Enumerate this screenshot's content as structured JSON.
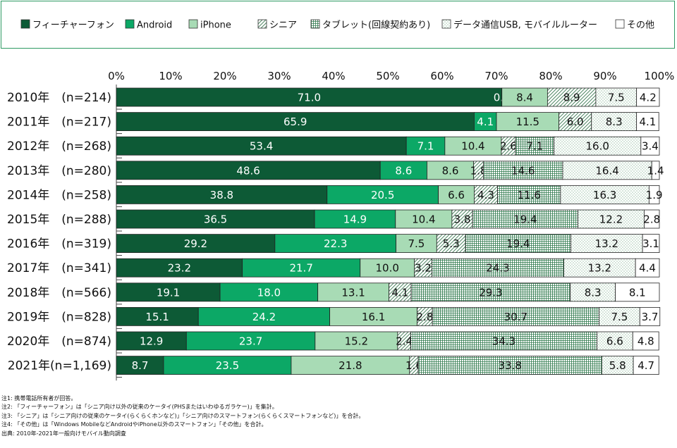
{
  "chart_data": {
    "type": "bar",
    "orientation": "horizontal",
    "stacked": true,
    "xlim": [
      0,
      100
    ],
    "x_ticks": [
      "0%",
      "10%",
      "20%",
      "30%",
      "40%",
      "50%",
      "60%",
      "70%",
      "80%",
      "90%",
      "100%"
    ],
    "legend_position": "top",
    "categories": [
      "2010年　(n=214)",
      "2011年　(n=217)",
      "2012年　(n=268)",
      "2013年　(n=280)",
      "2014年　(n=258)",
      "2015年　(n=288)",
      "2016年　(n=319)",
      "2017年　(n=341)",
      "2018年　(n=566)",
      "2019年　(n=828)",
      "2020年　(n=874)",
      "2021年(n=1,169)"
    ],
    "series": [
      {
        "name": "フィーチャーフォン",
        "fill": "#0d5a36",
        "pattern": "solid",
        "label_color": "#ffffff",
        "values": [
          71.0,
          65.9,
          53.4,
          48.6,
          38.8,
          36.5,
          29.2,
          23.2,
          19.1,
          15.1,
          12.9,
          8.7
        ]
      },
      {
        "name": "Android",
        "fill": "#0ca866",
        "pattern": "solid",
        "label_color": "#ffffff",
        "values": [
          0.0,
          4.1,
          7.1,
          8.6,
          20.5,
          14.9,
          22.3,
          21.7,
          18.0,
          24.2,
          23.7,
          23.5
        ]
      },
      {
        "name": "iPhone",
        "fill": "#a8dbb5",
        "pattern": "solid",
        "label_color": "#111111",
        "values": [
          8.4,
          11.5,
          10.4,
          8.6,
          6.6,
          10.4,
          7.5,
          10.0,
          13.1,
          16.1,
          15.2,
          21.8
        ]
      },
      {
        "name": "シニア",
        "fill": "#ffffff",
        "pattern": "diagonal",
        "label_color": "#111111",
        "values": [
          8.9,
          6.0,
          2.6,
          1.8,
          4.3,
          3.8,
          5.3,
          3.2,
          4.1,
          2.8,
          2.4,
          1.6
        ]
      },
      {
        "name": "タブレット(回線契約あり)",
        "fill": "#ffffff",
        "pattern": "grid",
        "label_color": "#111111",
        "values": [
          0,
          0,
          7.1,
          14.6,
          11.6,
          19.4,
          19.4,
          24.3,
          29.3,
          30.7,
          34.3,
          33.8
        ]
      },
      {
        "name": "データ通信USB, モバイルルーター",
        "fill": "#ffffff",
        "pattern": "dots",
        "label_color": "#111111",
        "values": [
          7.5,
          8.3,
          16.0,
          16.4,
          16.3,
          12.2,
          13.2,
          13.2,
          8.3,
          7.5,
          6.6,
          5.8
        ]
      },
      {
        "name": "その他",
        "fill": "#ffffff",
        "pattern": "solid",
        "label_color": "#111111",
        "values": [
          4.2,
          4.1,
          3.4,
          1.4,
          1.9,
          2.8,
          3.1,
          4.4,
          8.1,
          3.7,
          4.8,
          4.7
        ]
      }
    ]
  },
  "notes": [
    "注1: 携帯電話所有者が回答。",
    "注2: 「フィーチャーフォン」は「シニア向け以外の従来のケータイ(PHSまたはいわゆるガラケー)」を集計。",
    "注3: 「シニア」は「シニア向けの従来のケータイ(らくらくホンなど)」「シニア向けのスマートフォン(らくらくスマートフォンなど)」を合計。",
    "注4: 「その他」は「Windows MobileなどAndroidやiPhone以外のスマートフォン」「その他」を合計。",
    "出典: 2010年-2021年一般向けモバイル動向調査"
  ]
}
